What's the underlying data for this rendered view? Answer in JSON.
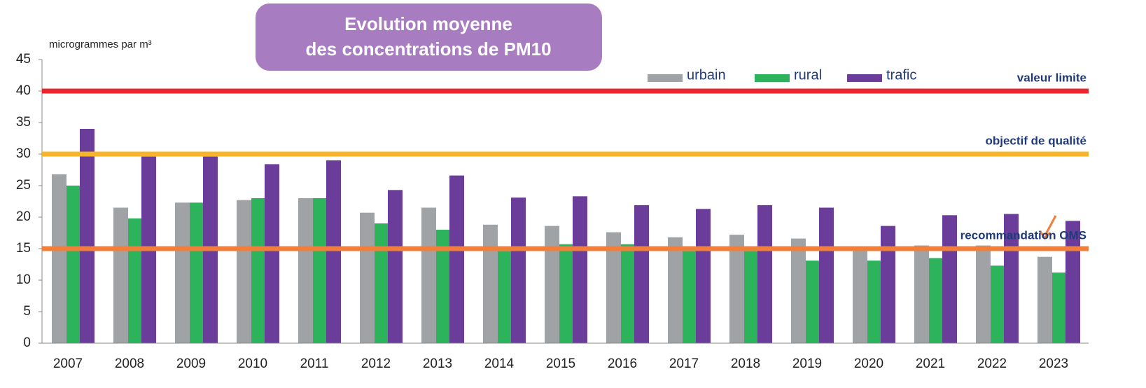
{
  "chart_data": {
    "type": "bar",
    "title_lines": [
      "Evolution moyenne",
      "des concentrations de PM10"
    ],
    "y_axis_label": "microgrammes par m³",
    "categories": [
      "2007",
      "2008",
      "2009",
      "2010",
      "2011",
      "2012",
      "2013",
      "2014",
      "2015",
      "2016",
      "2017",
      "2018",
      "2019",
      "2020",
      "2021",
      "2022",
      "2023"
    ],
    "series": [
      {
        "name": "urbain",
        "color": "#a0a3a6",
        "values": [
          26.8,
          21.5,
          22.3,
          22.7,
          23,
          20.7,
          21.5,
          18.8,
          18.6,
          17.6,
          16.8,
          17.2,
          16.6,
          15.1,
          15.5,
          15.5,
          13.7
        ]
      },
      {
        "name": "rural",
        "color": "#2db35c",
        "values": [
          25,
          19.8,
          22.3,
          23,
          23,
          19,
          18,
          14.6,
          15.7,
          15.7,
          14.6,
          14.6,
          13.1,
          13.1,
          13.5,
          12.3,
          11.2
        ]
      },
      {
        "name": "trafic",
        "color": "#6a3d9a",
        "values": [
          34,
          29.6,
          29.6,
          28.4,
          29,
          24.3,
          26.6,
          23.1,
          23.3,
          21.9,
          21.3,
          21.9,
          21.5,
          18.6,
          20.3,
          20.5,
          19.4
        ]
      }
    ],
    "reference_lines": [
      {
        "label": "valeur limite",
        "value": 40,
        "color": "#e8262c"
      },
      {
        "label": "objectif de qualité",
        "value": 30,
        "color": "#f7b52a"
      },
      {
        "label": "recommandation OMS",
        "value": 15,
        "color": "#f07f3c"
      }
    ],
    "ylim": [
      0,
      45
    ],
    "yticks": [
      0,
      5,
      10,
      15,
      20,
      25,
      30,
      35,
      40,
      45
    ]
  }
}
